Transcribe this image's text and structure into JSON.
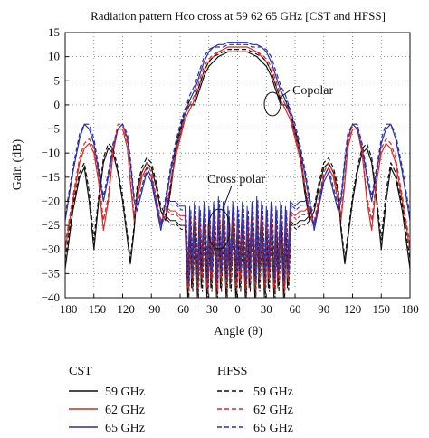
{
  "chart_data": {
    "type": "line",
    "title": "Radiation pattern Hco cross at 59 62 65 GHz [CST and HFSS]",
    "xlabel": "Angle (θ)",
    "ylabel": "Gain (dB)",
    "xlim": [
      -180,
      180
    ],
    "ylim": [
      -40,
      15
    ],
    "xticks": [
      -180,
      -150,
      -120,
      -90,
      -60,
      -30,
      0,
      30,
      60,
      90,
      120,
      150,
      180
    ],
    "yticks": [
      15,
      10,
      5,
      0,
      -5,
      -10,
      -15,
      -20,
      -25,
      -30,
      -35,
      -40
    ],
    "grid": true,
    "legend": {
      "position": "bottom",
      "groups": [
        {
          "title": "CST",
          "entries": [
            "59 GHz",
            "62 GHz",
            "65 GHz"
          ]
        },
        {
          "title": "HFSS",
          "entries": [
            "59 GHz",
            "62 GHz",
            "65 GHz"
          ]
        }
      ]
    },
    "annotations": [
      {
        "text": "Copolar",
        "x": 43,
        "y": 0
      },
      {
        "text": "Cross polar",
        "x": -15,
        "y": -25
      }
    ],
    "colors": {
      "59 GHz": "#111111",
      "62 GHz": "#d42a2a",
      "65 GHz": "#2b2fa8"
    },
    "series": [
      {
        "name": "59 GHz",
        "tool": "CST",
        "dash": false,
        "color": "#111111",
        "x": [
          -180,
          -172,
          -165,
          -160,
          -155,
          -150,
          -145,
          -140,
          -135,
          -130,
          -125,
          -120,
          -115,
          -112,
          -108,
          -105,
          -100,
          -95,
          -90,
          -85,
          -80,
          -75,
          -70,
          -65,
          -60,
          -55,
          -50,
          -45,
          -40,
          -35,
          -30,
          -25,
          -20,
          -15,
          -10,
          -5,
          0,
          5,
          10,
          15,
          20,
          25,
          30,
          35,
          40,
          45,
          50,
          55,
          60,
          65,
          70,
          75,
          80,
          85,
          90,
          95,
          100,
          105,
          108,
          112,
          115,
          120,
          125,
          130,
          135,
          140,
          145,
          150,
          155,
          160,
          165,
          172,
          180
        ],
        "y": [
          -34,
          -22,
          -15,
          -13,
          -20,
          -30,
          -20,
          -12,
          -9,
          -10,
          -14,
          -20,
          -28,
          -33,
          -26,
          -18,
          -14,
          -12,
          -13,
          -17,
          -22,
          -24,
          -18,
          -10,
          -6,
          -2,
          0,
          0,
          3,
          6,
          8,
          9,
          10,
          10.5,
          11,
          11,
          11,
          11,
          11,
          10.5,
          10,
          9,
          8,
          6,
          3,
          0,
          0,
          -2,
          -6,
          -10,
          -18,
          -24,
          -22,
          -17,
          -13,
          -12,
          -14,
          -18,
          -26,
          -33,
          -28,
          -20,
          -14,
          -10,
          -9,
          -12,
          -20,
          -30,
          -20,
          -13,
          -15,
          -22,
          -34
        ]
      },
      {
        "name": "62 GHz",
        "tool": "CST",
        "dash": false,
        "color": "#d42a2a",
        "x": [
          -180,
          -172,
          -165,
          -160,
          -155,
          -150,
          -145,
          -140,
          -135,
          -130,
          -125,
          -120,
          -115,
          -112,
          -108,
          -105,
          -100,
          -95,
          -90,
          -85,
          -80,
          -75,
          -70,
          -65,
          -60,
          -55,
          -50,
          -45,
          -40,
          -35,
          -30,
          -25,
          -20,
          -15,
          -10,
          -5,
          0,
          5,
          10,
          15,
          20,
          25,
          30,
          35,
          40,
          45,
          50,
          55,
          60,
          65,
          70,
          75,
          80,
          85,
          90,
          95,
          100,
          105,
          108,
          112,
          115,
          120,
          125,
          130,
          135,
          140,
          145,
          150,
          155,
          160,
          165,
          172,
          180
        ],
        "y": [
          -30,
          -20,
          -12,
          -9,
          -8,
          -10,
          -16,
          -26,
          -20,
          -10,
          -5,
          -5,
          -9,
          -16,
          -24,
          -20,
          -15,
          -13,
          -15,
          -20,
          -25,
          -23,
          -17,
          -11,
          -7,
          -3,
          -1,
          1,
          4,
          7,
          9,
          10,
          11,
          11.5,
          12,
          12,
          12,
          12,
          12,
          11.5,
          11,
          10,
          9,
          7,
          4,
          1,
          -1,
          -3,
          -7,
          -11,
          -17,
          -23,
          -25,
          -20,
          -15,
          -13,
          -15,
          -20,
          -24,
          -16,
          -9,
          -5,
          -5,
          -10,
          -20,
          -26,
          -16,
          -10,
          -8,
          -9,
          -12,
          -20,
          -30
        ]
      },
      {
        "name": "65 GHz",
        "tool": "CST",
        "dash": false,
        "color": "#2b2fa8",
        "x": [
          -180,
          -172,
          -165,
          -160,
          -155,
          -150,
          -145,
          -140,
          -135,
          -130,
          -125,
          -120,
          -115,
          -112,
          -108,
          -105,
          -100,
          -95,
          -90,
          -85,
          -80,
          -75,
          -70,
          -65,
          -60,
          -55,
          -50,
          -45,
          -40,
          -35,
          -30,
          -25,
          -20,
          -15,
          -10,
          -5,
          0,
          5,
          10,
          15,
          20,
          25,
          30,
          35,
          40,
          45,
          50,
          55,
          60,
          65,
          70,
          75,
          80,
          85,
          90,
          95,
          100,
          105,
          108,
          112,
          115,
          120,
          125,
          130,
          135,
          140,
          145,
          150,
          155,
          160,
          165,
          172,
          180
        ],
        "y": [
          -24,
          -14,
          -7,
          -4,
          -5,
          -8,
          -14,
          -20,
          -15,
          -9,
          -5,
          -4,
          -7,
          -12,
          -20,
          -22,
          -18,
          -14,
          -16,
          -21,
          -26,
          -20,
          -14,
          -9,
          -5,
          -2,
          1,
          3,
          6,
          9,
          11,
          12,
          12.5,
          12.5,
          13,
          13,
          13,
          13,
          13,
          12.5,
          12.5,
          12,
          11,
          9,
          6,
          3,
          1,
          -2,
          -5,
          -9,
          -14,
          -20,
          -26,
          -21,
          -16,
          -14,
          -18,
          -22,
          -20,
          -12,
          -7,
          -4,
          -5,
          -9,
          -15,
          -20,
          -14,
          -8,
          -5,
          -4,
          -7,
          -14,
          -24
        ]
      },
      {
        "name": "59 GHz",
        "tool": "HFSS",
        "dash": true,
        "color": "#111111",
        "x": [
          -180,
          -172,
          -165,
          -160,
          -155,
          -150,
          -145,
          -140,
          -135,
          -130,
          -125,
          -120,
          -115,
          -112,
          -108,
          -105,
          -100,
          -95,
          -90,
          -85,
          -80,
          -75,
          -70,
          -65,
          -60,
          -55,
          -50,
          -45,
          -40,
          -35,
          -30,
          -25,
          -20,
          -15,
          -10,
          -5,
          0,
          5,
          10,
          15,
          20,
          25,
          30,
          35,
          40,
          45,
          50,
          55,
          60,
          65,
          70,
          75,
          80,
          85,
          90,
          95,
          100,
          105,
          108,
          112,
          115,
          120,
          125,
          130,
          135,
          140,
          145,
          150,
          155,
          160,
          165,
          172,
          180
        ],
        "y": [
          -32,
          -21,
          -14,
          -12,
          -18,
          -28,
          -19,
          -11,
          -8,
          -9,
          -13,
          -19,
          -27,
          -32,
          -25,
          -17,
          -13,
          -11,
          -12,
          -16,
          -21,
          -23,
          -17,
          -9,
          -5,
          -1,
          1,
          1,
          4,
          7,
          9,
          10,
          10.5,
          11,
          11.5,
          11.5,
          11.5,
          11.5,
          11.5,
          11,
          10.5,
          10,
          9,
          7,
          4,
          1,
          1,
          -1,
          -5,
          -9,
          -17,
          -23,
          -21,
          -16,
          -12,
          -11,
          -13,
          -17,
          -25,
          -32,
          -27,
          -19,
          -13,
          -9,
          -8,
          -11,
          -19,
          -28,
          -18,
          -12,
          -14,
          -21,
          -32
        ]
      },
      {
        "name": "62 GHz",
        "tool": "HFSS",
        "dash": true,
        "color": "#d42a2a",
        "x": [
          -180,
          -172,
          -165,
          -160,
          -155,
          -150,
          -145,
          -140,
          -135,
          -130,
          -125,
          -120,
          -115,
          -112,
          -108,
          -105,
          -100,
          -95,
          -90,
          -85,
          -80,
          -75,
          -70,
          -65,
          -60,
          -55,
          -50,
          -45,
          -40,
          -35,
          -30,
          -25,
          -20,
          -15,
          -10,
          -5,
          0,
          5,
          10,
          15,
          20,
          25,
          30,
          35,
          40,
          45,
          50,
          55,
          60,
          65,
          70,
          75,
          80,
          85,
          90,
          95,
          100,
          105,
          108,
          112,
          115,
          120,
          125,
          130,
          135,
          140,
          145,
          150,
          155,
          160,
          165,
          172,
          180
        ],
        "y": [
          -29,
          -19,
          -11,
          -8,
          -7,
          -9,
          -15,
          -24,
          -19,
          -9,
          -4,
          -4,
          -8,
          -15,
          -23,
          -19,
          -14,
          -12,
          -14,
          -19,
          -24,
          -22,
          -16,
          -10,
          -6,
          -2,
          0,
          2,
          5,
          8,
          9.5,
          10.5,
          11,
          11,
          11,
          11,
          11,
          11,
          11,
          11,
          11,
          10.5,
          9.5,
          8,
          5,
          2,
          0,
          -2,
          -6,
          -10,
          -16,
          -22,
          -24,
          -19,
          -14,
          -12,
          -14,
          -19,
          -23,
          -15,
          -8,
          -4,
          -4,
          -9,
          -19,
          -24,
          -15,
          -9,
          -7,
          -8,
          -11,
          -19,
          -29
        ]
      },
      {
        "name": "65 GHz",
        "tool": "HFSS",
        "dash": true,
        "color": "#2b2fa8",
        "x": [
          -180,
          -172,
          -165,
          -160,
          -155,
          -150,
          -145,
          -140,
          -135,
          -130,
          -125,
          -120,
          -115,
          -112,
          -108,
          -105,
          -100,
          -95,
          -90,
          -85,
          -80,
          -75,
          -70,
          -65,
          -60,
          -55,
          -50,
          -45,
          -40,
          -35,
          -30,
          -25,
          -20,
          -15,
          -10,
          -5,
          0,
          5,
          10,
          15,
          20,
          25,
          30,
          35,
          40,
          45,
          50,
          55,
          60,
          65,
          70,
          75,
          80,
          85,
          90,
          95,
          100,
          105,
          108,
          112,
          115,
          120,
          125,
          130,
          135,
          140,
          145,
          150,
          155,
          160,
          165,
          172,
          180
        ],
        "y": [
          -23,
          -13,
          -6,
          -4,
          -4,
          -7,
          -13,
          -19,
          -14,
          -8,
          -5,
          -4,
          -6,
          -11,
          -19,
          -21,
          -17,
          -13,
          -15,
          -20,
          -25,
          -19,
          -13,
          -8,
          -4,
          -1,
          2,
          4,
          7,
          10,
          11.5,
          12,
          12,
          12,
          12.5,
          12.5,
          12.5,
          12.5,
          12.5,
          12,
          12,
          12,
          11.5,
          10,
          7,
          4,
          2,
          -1,
          -4,
          -8,
          -13,
          -19,
          -25,
          -20,
          -15,
          -13,
          -17,
          -21,
          -19,
          -11,
          -6,
          -4,
          -4,
          -8,
          -14,
          -19,
          -13,
          -7,
          -4,
          -4,
          -6,
          -13,
          -23
        ]
      }
    ],
    "cross_polar": {
      "x": [
        -75,
        -70,
        -65,
        -60,
        -55,
        -52,
        -50,
        -48,
        -45,
        -42,
        -40,
        -38,
        -35,
        -32,
        -30,
        -28,
        -25,
        -22,
        -20,
        -18,
        -15,
        -12,
        -10,
        -8,
        -5,
        -2,
        0,
        2,
        5,
        8,
        10,
        12,
        15,
        18,
        20,
        22,
        25,
        28,
        30,
        32,
        35,
        38,
        40,
        42,
        45,
        48,
        50,
        52,
        55,
        60,
        65,
        70,
        75
      ],
      "59 GHz": [
        -23,
        -24,
        -24,
        -25,
        -25,
        -40,
        -25,
        -38,
        -24,
        -40,
        -26,
        -38,
        -24,
        -40,
        -25,
        -38,
        -24,
        -40,
        -23,
        -38,
        -24,
        -40,
        -25,
        -38,
        -24,
        -40,
        -26,
        -38,
        -24,
        -40,
        -25,
        -38,
        -24,
        -40,
        -23,
        -38,
        -24,
        -40,
        -25,
        -38,
        -24,
        -40,
        -26,
        -38,
        -24,
        -40,
        -25,
        -38,
        -24,
        -25,
        -24,
        -24,
        -23
      ],
      "62 GHz": [
        -21,
        -22,
        -22,
        -23,
        -23,
        -38,
        -23,
        -36,
        -22,
        -38,
        -23,
        -36,
        -22,
        -38,
        -23,
        -36,
        -22,
        -38,
        -21,
        -36,
        -22,
        -38,
        -23,
        -36,
        -22,
        -38,
        -23,
        -36,
        -22,
        -38,
        -23,
        -36,
        -22,
        -38,
        -21,
        -36,
        -22,
        -38,
        -23,
        -36,
        -22,
        -38,
        -23,
        -36,
        -22,
        -38,
        -23,
        -36,
        -22,
        -23,
        -22,
        -22,
        -21
      ],
      "65 GHz": [
        -19,
        -20,
        -20,
        -21,
        -21,
        -36,
        -21,
        -34,
        -20,
        -36,
        -21,
        -34,
        -20,
        -36,
        -21,
        -34,
        -20,
        -36,
        -19,
        -34,
        -20,
        -36,
        -21,
        -34,
        -20,
        -36,
        -21,
        -34,
        -20,
        -36,
        -21,
        -34,
        -20,
        -36,
        -19,
        -34,
        -20,
        -36,
        -21,
        -34,
        -20,
        -36,
        -21,
        -34,
        -20,
        -36,
        -21,
        -34,
        -20,
        -21,
        -20,
        -20,
        -19
      ]
    }
  }
}
